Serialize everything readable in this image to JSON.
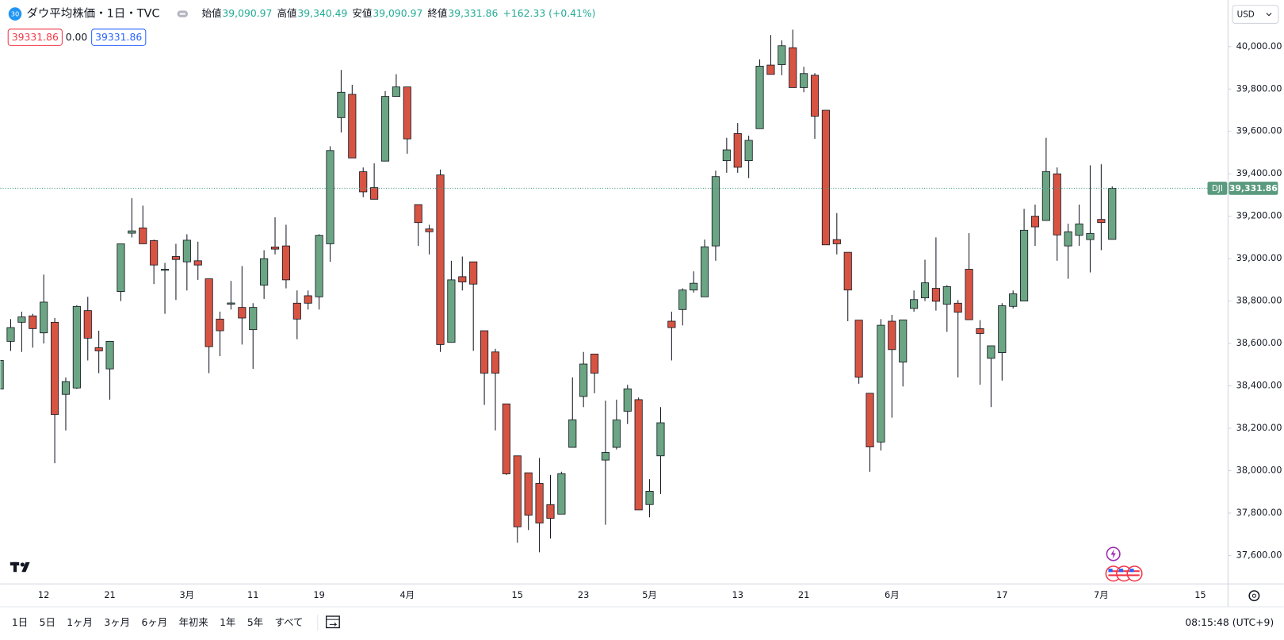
{
  "header": {
    "badge": "30",
    "title": "ダウ平均株価・1日・TVC",
    "ohlc": [
      {
        "label": "始値",
        "value": "39,090.97"
      },
      {
        "label": "高値",
        "value": "39,340.49"
      },
      {
        "label": "安値",
        "value": "39,090.97"
      },
      {
        "label": "終値",
        "value": "39,331.86"
      }
    ],
    "change": "+162.33 (+0.41%)"
  },
  "price_boxes": [
    "39331.86",
    "0.00",
    "39331.86"
  ],
  "currency": "USD",
  "chart_data": {
    "type": "candlestick",
    "categories": [
      null,
      null,
      null,
      null,
      "12",
      null,
      null,
      null,
      null,
      null,
      "21",
      null,
      null,
      null,
      null,
      null,
      null,
      "3月",
      null,
      null,
      null,
      null,
      null,
      "11",
      null,
      null,
      null,
      null,
      null,
      "19",
      null,
      null,
      null,
      null,
      null,
      null,
      null,
      "4月",
      null,
      null,
      null,
      null,
      null,
      null,
      null,
      null,
      null,
      "15",
      null,
      null,
      null,
      null,
      null,
      "23",
      null,
      null,
      null,
      null,
      null,
      "5月",
      null,
      null,
      null,
      null,
      null,
      null,
      null,
      "13",
      null,
      null,
      null,
      null,
      null,
      "21",
      null,
      null,
      null,
      null,
      null,
      null,
      null,
      "6月",
      null,
      null,
      null,
      null,
      null,
      null,
      null,
      null,
      null,
      "17",
      null,
      null,
      null,
      null,
      null,
      null,
      null,
      null,
      "7月",
      null,
      null,
      null,
      null,
      null,
      null,
      null,
      null,
      "15"
    ],
    "open": [
      38385,
      38610,
      38700,
      38730,
      38650,
      38700,
      38360,
      38390,
      38755,
      38580,
      38480,
      38845,
      39120,
      39145,
      39085,
      38945,
      39010,
      38985,
      38990,
      38905,
      38715,
      38785,
      38770,
      38665,
      38875,
      39055,
      39060,
      38790,
      38825,
      38820,
      39070,
      39665,
      39775,
      39410,
      39335,
      39460,
      39765,
      39810,
      39255,
      39140,
      39395,
      38605,
      38915,
      38985,
      38660,
      38560,
      38315,
      38070,
      37990,
      37940,
      37840,
      37795,
      38110,
      38350,
      38550,
      38050,
      38110,
      38280,
      38335,
      37840,
      38070,
      38705,
      38760,
      38852,
      38820,
      39060,
      39462,
      39590,
      39462,
      39613,
      39913,
      39915,
      39995,
      39807,
      39865,
      39700,
      39090,
      39030,
      38710,
      38365,
      38135,
      38705,
      38512,
      38765,
      38815,
      38860,
      38785,
      38790,
      38950,
      38670,
      38530,
      38557,
      38775,
      38800,
      39200,
      39180,
      39400,
      39060,
      39110,
      39090,
      39185,
      39090.97,
      null,
      null,
      null,
      null,
      null,
      null,
      null,
      null
    ],
    "high": [
      38540,
      38715,
      38750,
      38740,
      38925,
      38720,
      38440,
      38780,
      38820,
      38660,
      38612,
      39070,
      39285,
      39250,
      39090,
      38980,
      39070,
      39115,
      39080,
      38905,
      38750,
      38895,
      38965,
      38790,
      39040,
      39195,
      39160,
      38850,
      38850,
      39115,
      39530,
      39890,
      39820,
      39430,
      39450,
      39790,
      39870,
      39810,
      39255,
      39160,
      39420,
      38990,
      39010,
      38985,
      38660,
      38575,
      38315,
      38070,
      37990,
      38060,
      37980,
      37995,
      38440,
      38560,
      38550,
      38330,
      38335,
      38405,
      38345,
      37960,
      38300,
      38750,
      38860,
      38940,
      39090,
      39415,
      39570,
      39640,
      39580,
      39940,
      40055,
      40030,
      40080,
      39905,
      39875,
      39700,
      39215,
      39030,
      38710,
      38365,
      38715,
      38735,
      38711,
      38850,
      38995,
      39100,
      38875,
      38805,
      39120,
      38710,
      38590,
      38790,
      38850,
      39235,
      39255,
      39570,
      39430,
      39165,
      39255,
      39440,
      39445,
      39340.49,
      null,
      null,
      null,
      null,
      null,
      null,
      null,
      null
    ],
    "low": [
      38380,
      38565,
      38560,
      38580,
      38600,
      38035,
      38190,
      38385,
      38520,
      38460,
      38335,
      38800,
      39100,
      39070,
      38880,
      38740,
      38805,
      38850,
      38900,
      38460,
      38540,
      38760,
      38595,
      38480,
      38810,
      39020,
      38860,
      38620,
      38760,
      38760,
      38985,
      39595,
      39475,
      39290,
      39280,
      39460,
      39765,
      39495,
      39060,
      39020,
      38560,
      38605,
      38850,
      38565,
      38310,
      38190,
      37980,
      37660,
      37720,
      37615,
      37680,
      37795,
      38110,
      38300,
      38365,
      37745,
      38100,
      38220,
      37815,
      37780,
      37890,
      38520,
      38685,
      38840,
      38820,
      38990,
      39405,
      39405,
      39380,
      39613,
      39869,
      39865,
      39807,
      39785,
      39565,
      39065,
      39020,
      38705,
      38410,
      37995,
      38095,
      38250,
      38397,
      38750,
      38800,
      38755,
      38655,
      38440,
      38712,
      38405,
      38300,
      38425,
      38765,
      38800,
      39060,
      39180,
      38990,
      38905,
      39060,
      38935,
      39040,
      39090.97,
      null,
      null,
      null,
      null,
      null,
      null,
      null,
      null
    ],
    "close": [
      38520,
      38675,
      38725,
      38670,
      38795,
      38265,
      38420,
      38775,
      38625,
      38565,
      38610,
      39070,
      39131,
      39070,
      38970,
      38950,
      38996,
      39087,
      38970,
      38585,
      38660,
      38791,
      38720,
      38770,
      39000,
      39045,
      38900,
      38715,
      38790,
      39110,
      39510,
      39785,
      39475,
      39315,
      39280,
      39765,
      39810,
      39565,
      39170,
      39127,
      38595,
      38900,
      38890,
      38880,
      38460,
      38460,
      37985,
      37735,
      37790,
      37753,
      37775,
      37986,
      38240,
      38503,
      38460,
      38086,
      38239,
      38386,
      37815,
      37903,
      38226,
      38675,
      38852,
      38884,
      39056,
      39387,
      39513,
      39431,
      39558,
      39908,
      39869,
      40004,
      39807,
      39873,
      39672,
      39065,
      39070,
      38852,
      38441,
      38112,
      38686,
      38571,
      38711,
      38807,
      38886,
      38799,
      38868,
      38747,
      38712,
      38647,
      38589,
      38778,
      38834,
      39134,
      39150,
      39411,
      39112,
      39127,
      39164,
      39119,
      39170,
      39331.86,
      null,
      null,
      null,
      null,
      null,
      null,
      null,
      null
    ],
    "up_color": "#6ba583",
    "down_color": "#d75442",
    "ylim": [
      37468,
      40220
    ],
    "yticks": [
      {
        "value": 37600,
        "label": "37,600.00"
      },
      {
        "value": 37800,
        "label": "37,800.00"
      },
      {
        "value": 38000,
        "label": "38,000.00"
      },
      {
        "value": 38200,
        "label": "38,200.00"
      },
      {
        "value": 38400,
        "label": "38,400.00"
      },
      {
        "value": 38600,
        "label": "38,600.00"
      },
      {
        "value": 38800,
        "label": "38,800.00"
      },
      {
        "value": 39000,
        "label": "39,000.00"
      },
      {
        "value": 39200,
        "label": "39,200.00"
      },
      {
        "value": 39400,
        "label": "39,400.00"
      },
      {
        "value": 39600,
        "label": "39,600.00"
      },
      {
        "value": 39800,
        "label": "39,800.00"
      },
      {
        "value": 40000,
        "label": "40,000.00"
      }
    ],
    "price_line": {
      "name": "DJI",
      "label": "39,331.86"
    }
  },
  "toolbar": {
    "ranges": [
      "1日",
      "5日",
      "1ヶ月",
      "3ヶ月",
      "6ヶ月",
      "年初来",
      "1年",
      "5年",
      "すべて"
    ],
    "time": "08:15:48 (UTC+9)"
  }
}
